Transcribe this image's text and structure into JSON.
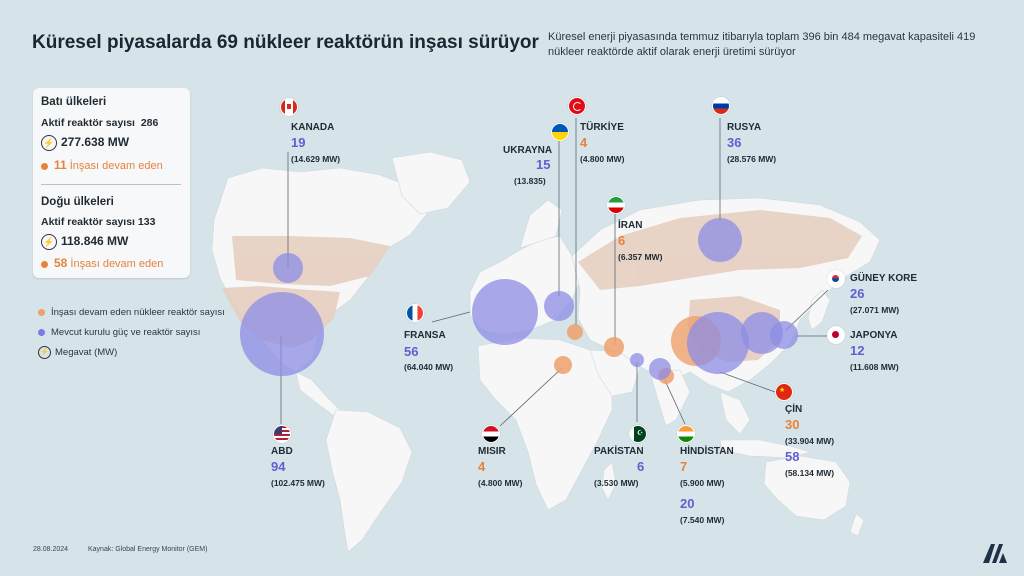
{
  "title": "Küresel piyasalarda 69 nükleer reaktörün inşası sürüyor",
  "subtitle": "Küresel enerji piyasasında temmuz itibarıyla toplam 396 bin 484 megavat kapasiteli 419 nükleer reaktörde aktif olarak enerji üretimi sürüyor",
  "west": {
    "heading": "Batı ülkeleri",
    "active_label": "Aktif reaktör sayısı",
    "active_count": "286",
    "mw": "277.638 MW",
    "construction_num": "11",
    "construction_label": "İnşası devam eden"
  },
  "east": {
    "heading": "Doğu ülkeleri",
    "active_label": "Aktif reaktör sayısı",
    "active_count": "133",
    "mw": "118.846 MW",
    "construction_num": "58",
    "construction_label": "İnşası devam eden"
  },
  "legend": {
    "construction": "İnşası devam eden nükleer reaktör sayısı",
    "installed": "Mevcut kurulu güç ve reaktör sayısı",
    "megawatt": "Megavat (MW)"
  },
  "colors": {
    "orange": "#e8823b",
    "blue": "#6a6ad8",
    "land": "#f7f7f7",
    "sea": "#d6e4ea",
    "highlight": "#e6cfc0"
  },
  "countries": {
    "kanada": {
      "name": "KANADA",
      "value": "19",
      "mw": "(14.629 MW)"
    },
    "abd": {
      "name": "ABD",
      "value": "94",
      "mw": "(102.475 MW)"
    },
    "fransa": {
      "name": "FRANSA",
      "value": "56",
      "mw": "(64.040 MW)"
    },
    "ukrayna": {
      "name": "UKRAYNA",
      "value": "15",
      "mw": "(13.835)"
    },
    "turkiye": {
      "name": "TÜRKİYE",
      "value": "4",
      "mw": "(4.800 MW)"
    },
    "iran": {
      "name": "İRAN",
      "value": "6",
      "mw": "(6.357 MW)"
    },
    "rusya": {
      "name": "RUSYA",
      "value": "36",
      "mw": "(28.576 MW)"
    },
    "guney_kore": {
      "name": "GÜNEY KORE",
      "value": "26",
      "mw": "(27.071 MW)"
    },
    "japonya": {
      "name": "JAPONYA",
      "value": "12",
      "mw": "(11.608 MW)"
    },
    "cin": {
      "name": "ÇİN",
      "value_orange": "30",
      "mw_orange": "(33.904 MW)",
      "value_blue": "58",
      "mw_blue": "(58.134 MW)"
    },
    "misir": {
      "name": "MISIR",
      "value": "4",
      "mw": "(4.800 MW)"
    },
    "pakistan": {
      "name": "PAKİSTAN",
      "value": "6",
      "mw": "(3.530 MW)"
    },
    "hindistan": {
      "name": "HİNDİSTAN",
      "value_orange": "7",
      "mw_orange": "(5.900 MW)",
      "value_blue": "20",
      "mw_blue": "(7.540 MW)"
    }
  },
  "footer": {
    "date": "28.08.2024",
    "source": "Kaynak: Global Energy Monitor (GEM)",
    "logo": "AA"
  }
}
